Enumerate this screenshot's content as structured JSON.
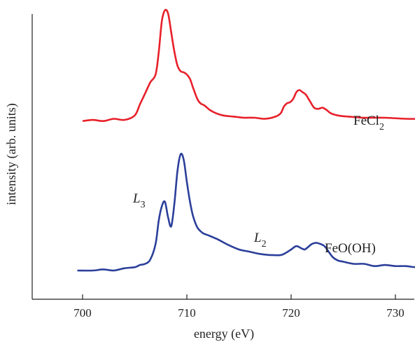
{
  "chart_data": {
    "type": "line",
    "xlabel": "energy (eV)",
    "ylabel": "intensity (arb. units)",
    "xlim": [
      695,
      735
    ],
    "x_ticks": [
      700,
      710,
      720,
      730
    ],
    "x_tick_labels": [
      "700",
      "710",
      "720",
      "730"
    ],
    "y_ticks_shown": false,
    "grid": false,
    "legend": "none",
    "annotations": {
      "fecl2": {
        "base": "FeCl",
        "sub": "2"
      },
      "feooh": "FeO(OH)",
      "l3": {
        "base": "L",
        "sub": "3"
      },
      "l2": {
        "base": "L",
        "sub": "2"
      }
    },
    "series": [
      {
        "name": "FeCl2",
        "color": "#e8202a",
        "offset": 1.35,
        "x": [
          700.0,
          701.0,
          702.0,
          703.0,
          704.0,
          705.0,
          705.5,
          706.0,
          706.5,
          707.0,
          707.3,
          707.6,
          707.9,
          708.2,
          708.5,
          708.8,
          709.1,
          709.4,
          709.7,
          710.0,
          710.3,
          710.6,
          711.0,
          711.3,
          711.7,
          712.2,
          712.8,
          713.5,
          714.5,
          715.5,
          716.5,
          717.5,
          718.5,
          719.0,
          719.3,
          719.6,
          719.9,
          720.2,
          720.5,
          720.8,
          721.1,
          721.4,
          721.8,
          722.2,
          722.6,
          723.0,
          723.4,
          723.8,
          724.5,
          725.5,
          727.0,
          729.0,
          731.0,
          733.0
        ],
        "y": [
          0.0,
          0.01,
          0.0,
          0.02,
          0.01,
          0.05,
          0.15,
          0.25,
          0.35,
          0.42,
          0.62,
          0.9,
          1.0,
          0.97,
          0.8,
          0.63,
          0.5,
          0.45,
          0.44,
          0.42,
          0.38,
          0.3,
          0.2,
          0.16,
          0.14,
          0.1,
          0.07,
          0.05,
          0.04,
          0.03,
          0.03,
          0.02,
          0.04,
          0.07,
          0.13,
          0.16,
          0.17,
          0.2,
          0.26,
          0.28,
          0.26,
          0.24,
          0.18,
          0.12,
          0.11,
          0.12,
          0.1,
          0.07,
          0.05,
          0.04,
          0.03,
          0.03,
          0.02,
          0.02
        ]
      },
      {
        "name": "FeO(OH)",
        "color": "#2b3f9a",
        "offset": 0.0,
        "x": [
          699.5,
          701.0,
          702.0,
          703.0,
          704.0,
          705.0,
          705.5,
          706.0,
          706.5,
          707.0,
          707.3,
          707.6,
          707.9,
          708.2,
          708.5,
          708.8,
          709.1,
          709.4,
          709.7,
          710.0,
          710.3,
          710.6,
          711.0,
          711.5,
          712.0,
          712.5,
          713.0,
          714.0,
          715.0,
          716.0,
          717.0,
          718.0,
          719.0,
          719.5,
          720.0,
          720.5,
          721.0,
          721.3,
          721.6,
          722.0,
          722.4,
          722.8,
          723.2,
          723.6,
          724.0,
          724.5,
          725.0,
          726.0,
          727.0,
          728.0,
          729.0,
          730.0,
          731.0,
          732.0,
          733.0
        ],
        "y": [
          0.0,
          0.0,
          0.01,
          0.0,
          0.02,
          0.03,
          0.05,
          0.06,
          0.1,
          0.24,
          0.45,
          0.58,
          0.62,
          0.48,
          0.4,
          0.6,
          0.9,
          1.05,
          1.0,
          0.8,
          0.62,
          0.49,
          0.39,
          0.34,
          0.32,
          0.3,
          0.28,
          0.23,
          0.19,
          0.17,
          0.15,
          0.14,
          0.14,
          0.16,
          0.19,
          0.22,
          0.2,
          0.19,
          0.21,
          0.24,
          0.25,
          0.24,
          0.22,
          0.17,
          0.12,
          0.09,
          0.08,
          0.06,
          0.06,
          0.04,
          0.05,
          0.04,
          0.04,
          0.03,
          0.04
        ]
      }
    ]
  }
}
